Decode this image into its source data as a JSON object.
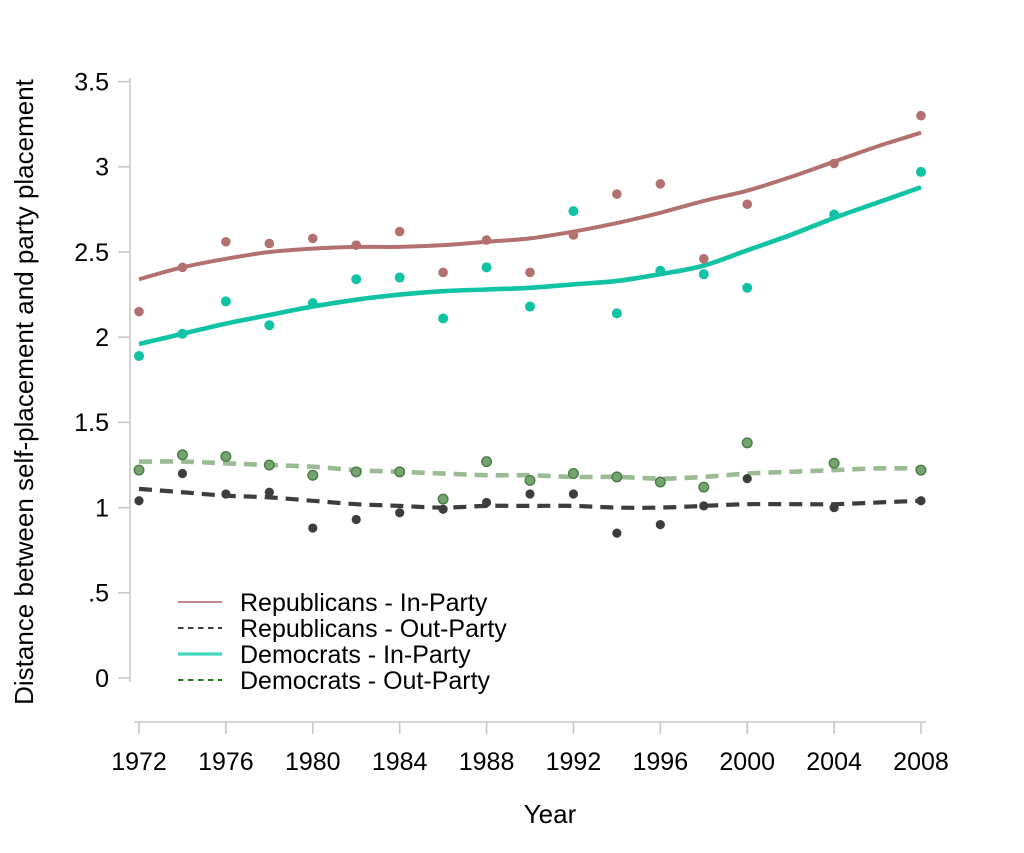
{
  "chart_data": {
    "type": "scatter",
    "subtype": "scatter points with lowess smoothed trend lines",
    "title": "",
    "x_label": "Year",
    "y_label": "Distance between self-placement and party placement",
    "xlim": [
      1972,
      2008
    ],
    "ylim": [
      0,
      3.5
    ],
    "grid": false,
    "legend_position": "inside lower-left",
    "x_ticks": {
      "values": [
        1972,
        1976,
        1980,
        1984,
        1988,
        1992,
        1996,
        2000,
        2004,
        2008
      ],
      "labels": [
        "1972",
        "1976",
        "1980",
        "1984",
        "1988",
        "1992",
        "1996",
        "2000",
        "2004",
        "2008"
      ]
    },
    "y_ticks": {
      "values": [
        0,
        0.5,
        1,
        1.5,
        2,
        2.5,
        3,
        3.5
      ],
      "labels": [
        "0",
        ".5",
        "1",
        "1.5",
        "2",
        "2.5",
        "3",
        "3.5"
      ]
    },
    "years": [
      1972,
      1974,
      1976,
      1978,
      1980,
      1982,
      1984,
      1986,
      1988,
      1990,
      1992,
      1994,
      1996,
      1998,
      2000,
      2004,
      2008
    ],
    "trend_years": [
      1972,
      1974,
      1976,
      1978,
      1980,
      1982,
      1984,
      1986,
      1988,
      1990,
      1992,
      1994,
      1996,
      1998,
      2000,
      2002,
      2004,
      2006,
      2008
    ],
    "series": [
      {
        "id": "republicans-in-party",
        "name": "Republicans - In-Party",
        "line_style": "solid",
        "color": "#b2706e",
        "legend_color": "#c18a86",
        "marker_fill": "#b2706e",
        "marker_stroke": "none",
        "points": [
          2.15,
          2.41,
          2.56,
          2.55,
          2.58,
          2.54,
          2.62,
          2.38,
          2.57,
          2.38,
          2.6,
          2.84,
          2.9,
          2.46,
          2.78,
          3.02,
          3.3
        ],
        "trend": [
          2.34,
          2.41,
          2.46,
          2.5,
          2.52,
          2.53,
          2.53,
          2.54,
          2.56,
          2.58,
          2.62,
          2.67,
          2.73,
          2.8,
          2.86,
          2.94,
          3.03,
          3.12,
          3.2
        ]
      },
      {
        "id": "republicans-out-party",
        "name": "Republicans - Out-Party",
        "line_style": "dashed",
        "color": "#3d3d3d",
        "legend_color": "#3d3d3d",
        "marker_fill": "#3d3d3d",
        "marker_stroke": "none",
        "points": [
          1.04,
          1.2,
          1.08,
          1.09,
          0.88,
          0.93,
          0.97,
          0.99,
          1.03,
          1.08,
          1.08,
          0.85,
          0.9,
          1.01,
          1.17,
          1.0,
          1.04
        ],
        "trend": [
          1.11,
          1.09,
          1.07,
          1.06,
          1.04,
          1.02,
          1.01,
          1.0,
          1.01,
          1.01,
          1.01,
          1.0,
          1.0,
          1.01,
          1.02,
          1.02,
          1.02,
          1.03,
          1.04
        ]
      },
      {
        "id": "democrats-in-party",
        "name": "Democrats - In-Party",
        "line_style": "solid",
        "color": "#10c3a4",
        "legend_color": "#44d6c0",
        "marker_fill": "#10c3a4",
        "marker_stroke": "none",
        "points": [
          1.89,
          2.02,
          2.21,
          2.07,
          2.2,
          2.34,
          2.35,
          2.11,
          2.41,
          2.18,
          2.74,
          2.14,
          2.39,
          2.37,
          2.29,
          2.72,
          2.97
        ],
        "trend": [
          1.96,
          2.02,
          2.08,
          2.13,
          2.18,
          2.22,
          2.25,
          2.27,
          2.28,
          2.29,
          2.31,
          2.33,
          2.37,
          2.42,
          2.51,
          2.6,
          2.7,
          2.79,
          2.88
        ]
      },
      {
        "id": "democrats-out-party",
        "name": "Democrats - Out-Party",
        "line_style": "dashed",
        "color": "#9abb94",
        "legend_color": "#207a20",
        "marker_fill": "#74a56f",
        "marker_stroke": "#4b7c47",
        "points": [
          1.22,
          1.31,
          1.3,
          1.25,
          1.19,
          1.21,
          1.21,
          1.05,
          1.27,
          1.16,
          1.2,
          1.18,
          1.15,
          1.12,
          1.38,
          1.26,
          1.22
        ],
        "trend": [
          1.27,
          1.27,
          1.26,
          1.25,
          1.24,
          1.22,
          1.21,
          1.2,
          1.19,
          1.19,
          1.18,
          1.18,
          1.17,
          1.18,
          1.2,
          1.21,
          1.22,
          1.23,
          1.23
        ]
      }
    ],
    "colors": {
      "axis_line": "#c8c8c8",
      "text": "#000000",
      "background": "#ffffff"
    }
  }
}
